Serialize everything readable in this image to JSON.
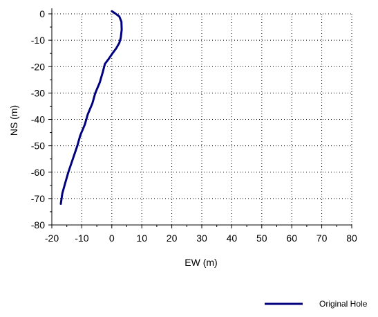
{
  "chart_data": {
    "type": "line",
    "xlabel": "EW (m)",
    "ylabel": "NS (m)",
    "xlim": [
      -20,
      80
    ],
    "ylim": [
      -80,
      0
    ],
    "xticks": [
      -20,
      -10,
      0,
      10,
      20,
      30,
      40,
      50,
      60,
      70,
      80
    ],
    "yticks": [
      0,
      -10,
      -20,
      -30,
      -40,
      -50,
      -60,
      -70,
      -80
    ],
    "x_tick_labels": [
      "-20",
      "-10",
      "0",
      "10",
      "20",
      "30",
      "40",
      "50",
      "60",
      "70",
      "80"
    ],
    "y_tick_labels": [
      "0",
      "-10",
      "-20",
      "-30",
      "-40",
      "-50",
      "-60",
      "-70",
      "-80"
    ],
    "grid": true,
    "legend_position": "bottom-right",
    "series": [
      {
        "name": "Original Hole",
        "color": "#00007f",
        "x": [
          0.0,
          1.0,
          2.5,
          3.2,
          3.3,
          3.0,
          2.5,
          1.5,
          0.2,
          -1.0,
          -2.3,
          -3.0,
          -4.0,
          -5.5,
          -6.5,
          -8.0,
          -9.0,
          -10.5,
          -11.5,
          -13.0,
          -14.5,
          -15.5,
          -16.5,
          -17.0
        ],
        "y": [
          1.0,
          0.3,
          -1.0,
          -3.0,
          -6.0,
          -9.0,
          -11.0,
          -13.0,
          -15.0,
          -17.0,
          -19.0,
          -22.0,
          -26.0,
          -30.0,
          -34.0,
          -38.0,
          -42.0,
          -46.0,
          -50.0,
          -55.0,
          -60.0,
          -64.0,
          -68.0,
          -72.0
        ]
      }
    ]
  }
}
